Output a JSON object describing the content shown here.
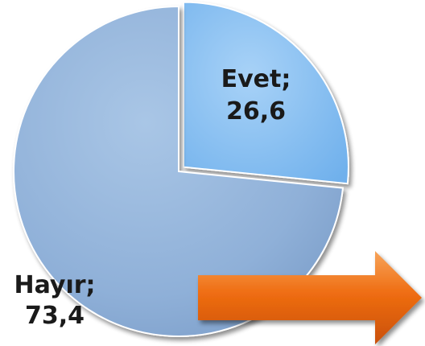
{
  "chart_data": {
    "type": "pie",
    "slices": [
      {
        "label": "Evet",
        "value": 26.6,
        "display_name": "Evet;",
        "display_value": "26,6",
        "color": "#7fbaf0"
      },
      {
        "label": "Hayır",
        "value": 73.4,
        "display_name": "Hayır;",
        "display_value": "73,4",
        "color": "#8fb0d8"
      }
    ],
    "start_angle_deg": 0,
    "direction": "clockwise",
    "style": "3d-bevel",
    "legend": "none",
    "title": ""
  },
  "decorations": {
    "arrow": {
      "shape": "right-arrow",
      "color": "#f06a10"
    }
  }
}
